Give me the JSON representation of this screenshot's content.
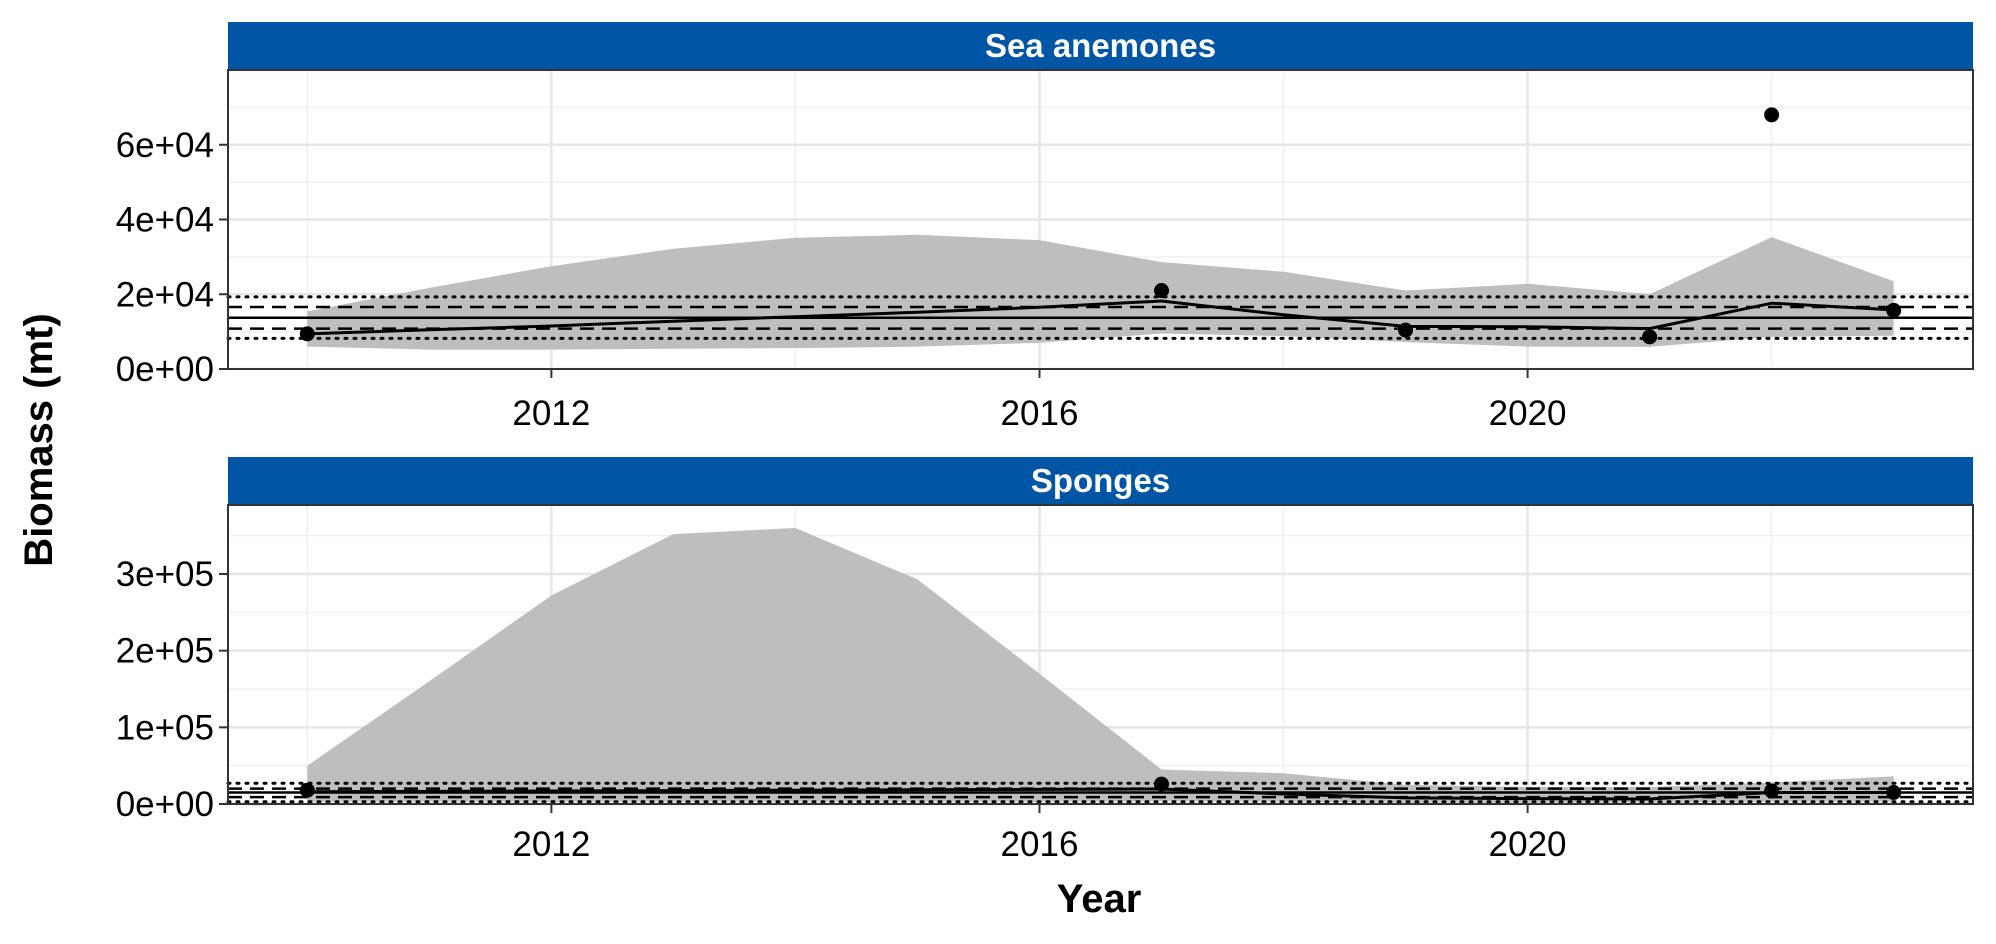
{
  "chart_data": {
    "type": "line",
    "xlabel": "Year",
    "ylabel": "Biomass (mt)",
    "x_ticks": [
      2012,
      2016,
      2020
    ],
    "x_tick_labels": [
      "2012",
      "2016",
      "2020"
    ],
    "xlim": [
      2009.35,
      2023.65
    ],
    "grid": true,
    "colors": {
      "strip": "#0055A5",
      "ribbon": "#BEBEBE",
      "line": "#000000"
    },
    "panels": [
      {
        "title": "Sea anemones",
        "ylim": [
          0,
          80000
        ],
        "y_ticks": [
          0,
          20000,
          40000,
          60000
        ],
        "y_tick_labels": [
          "0e+00",
          "2e+04",
          "4e+04",
          "6e+04"
        ],
        "mean": 13700,
        "sd_lower": 10800,
        "sd_upper": 16600,
        "sd2_lower": 8200,
        "sd2_upper": 19300,
        "points": {
          "x": [
            2010,
            2017,
            2019,
            2021,
            2022,
            2023
          ],
          "y": [
            9400,
            21000,
            10400,
            8600,
            68000,
            15700
          ]
        },
        "fit": {
          "x": [
            2010,
            2011,
            2012,
            2013,
            2014,
            2015,
            2016,
            2017,
            2018,
            2019,
            2020,
            2021,
            2022,
            2023
          ],
          "y": [
            9400,
            10500,
            11500,
            12800,
            14000,
            15200,
            16500,
            18200,
            14500,
            11400,
            11300,
            10800,
            17600,
            15800
          ],
          "lower": [
            6000,
            5200,
            5200,
            5400,
            5600,
            6000,
            7000,
            9500,
            8800,
            7200,
            6000,
            5900,
            8600,
            8900
          ],
          "upper": [
            15400,
            21700,
            27500,
            32200,
            35100,
            35900,
            34500,
            28600,
            26000,
            21000,
            22800,
            20000,
            35300,
            23500
          ]
        }
      },
      {
        "title": "Sponges",
        "ylim": [
          0,
          390000
        ],
        "y_ticks": [
          0,
          100000,
          200000,
          300000
        ],
        "y_tick_labels": [
          "0e+00",
          "1e+05",
          "2e+05",
          "3e+05"
        ],
        "mean": 15000,
        "sd_lower": 9000,
        "sd_upper": 20000,
        "sd2_lower": 3000,
        "sd2_upper": 27000,
        "points": {
          "x": [
            2010,
            2017,
            2022,
            2023
          ],
          "y": [
            18000,
            26000,
            17000,
            15000
          ]
        },
        "fit": {
          "x": [
            2010,
            2011,
            2012,
            2013,
            2014,
            2015,
            2016,
            2017,
            2018,
            2019,
            2020,
            2021,
            2022,
            2023
          ],
          "y": [
            16000,
            16500,
            17000,
            17500,
            18000,
            18500,
            19000,
            19500,
            13000,
            8000,
            7000,
            6500,
            15000,
            15000
          ],
          "lower": [
            3000,
            3000,
            3000,
            3000,
            3000,
            3000,
            3000,
            3500,
            3000,
            2000,
            2000,
            2000,
            3000,
            3000
          ],
          "upper": [
            50000,
            160000,
            272000,
            352000,
            360000,
            293000,
            170000,
            45000,
            40000,
            25000,
            22000,
            22000,
            28000,
            36000
          ]
        }
      }
    ]
  }
}
